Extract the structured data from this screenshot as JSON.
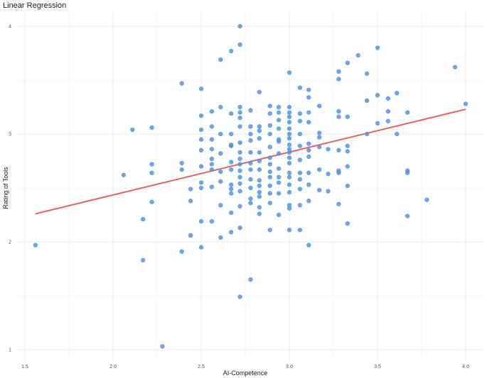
{
  "chart_data": {
    "type": "scatter",
    "title": "Linear Regression",
    "xlabel": "AI-Competence",
    "ylabel": "Rating of Tools",
    "xlim": [
      1.5,
      4.1
    ],
    "ylim": [
      0.9,
      4.1
    ],
    "x_ticks": [
      "1.5",
      "2.0",
      "2.5",
      "3.0",
      "3.5",
      "4.0"
    ],
    "y_ticks": [
      "1",
      "2",
      "3",
      "4"
    ],
    "grid": true,
    "point_color": "#4a90e2",
    "line_color": "#e8645f",
    "regression_line": {
      "x": [
        1.56,
        4.0
      ],
      "y": [
        2.26,
        3.23
      ]
    },
    "points": [
      {
        "x": 1.56,
        "y": 1.97
      },
      {
        "x": 2.06,
        "y": 2.62
      },
      {
        "x": 2.11,
        "y": 3.04
      },
      {
        "x": 2.17,
        "y": 1.83
      },
      {
        "x": 2.17,
        "y": 2.21
      },
      {
        "x": 2.22,
        "y": 2.37
      },
      {
        "x": 2.22,
        "y": 2.64
      },
      {
        "x": 2.22,
        "y": 2.72
      },
      {
        "x": 2.22,
        "y": 3.06
      },
      {
        "x": 2.28,
        "y": 1.03
      },
      {
        "x": 2.39,
        "y": 1.91
      },
      {
        "x": 2.39,
        "y": 2.67
      },
      {
        "x": 2.39,
        "y": 2.73
      },
      {
        "x": 2.39,
        "y": 3.47
      },
      {
        "x": 2.44,
        "y": 2.06
      },
      {
        "x": 2.44,
        "y": 2.38
      },
      {
        "x": 2.44,
        "y": 2.49
      },
      {
        "x": 2.5,
        "y": 1.95
      },
      {
        "x": 2.5,
        "y": 2.19
      },
      {
        "x": 2.5,
        "y": 2.5
      },
      {
        "x": 2.5,
        "y": 2.55
      },
      {
        "x": 2.5,
        "y": 2.7
      },
      {
        "x": 2.5,
        "y": 2.85
      },
      {
        "x": 2.5,
        "y": 2.95
      },
      {
        "x": 2.5,
        "y": 3.04
      },
      {
        "x": 2.5,
        "y": 3.17
      },
      {
        "x": 2.5,
        "y": 3.42
      },
      {
        "x": 2.56,
        "y": 2.19
      },
      {
        "x": 2.56,
        "y": 2.51
      },
      {
        "x": 2.56,
        "y": 2.67
      },
      {
        "x": 2.56,
        "y": 2.72
      },
      {
        "x": 2.56,
        "y": 2.77
      },
      {
        "x": 2.56,
        "y": 2.86
      },
      {
        "x": 2.56,
        "y": 2.95
      },
      {
        "x": 2.56,
        "y": 3.07
      },
      {
        "x": 2.56,
        "y": 3.21
      },
      {
        "x": 2.61,
        "y": 2.04
      },
      {
        "x": 2.61,
        "y": 2.34
      },
      {
        "x": 2.61,
        "y": 2.56
      },
      {
        "x": 2.61,
        "y": 2.65
      },
      {
        "x": 2.61,
        "y": 2.82
      },
      {
        "x": 2.61,
        "y": 3.0
      },
      {
        "x": 2.61,
        "y": 3.25
      },
      {
        "x": 2.61,
        "y": 3.69
      },
      {
        "x": 2.67,
        "y": 2.09
      },
      {
        "x": 2.67,
        "y": 2.27
      },
      {
        "x": 2.67,
        "y": 2.45
      },
      {
        "x": 2.67,
        "y": 2.49
      },
      {
        "x": 2.67,
        "y": 2.53
      },
      {
        "x": 2.67,
        "y": 2.67
      },
      {
        "x": 2.67,
        "y": 2.74
      },
      {
        "x": 2.67,
        "y": 2.89
      },
      {
        "x": 2.67,
        "y": 2.9
      },
      {
        "x": 2.67,
        "y": 3.0
      },
      {
        "x": 2.67,
        "y": 3.19
      },
      {
        "x": 2.67,
        "y": 3.77
      },
      {
        "x": 2.72,
        "y": 1.49
      },
      {
        "x": 2.72,
        "y": 2.13
      },
      {
        "x": 2.72,
        "y": 2.33
      },
      {
        "x": 2.72,
        "y": 2.47
      },
      {
        "x": 2.72,
        "y": 2.54
      },
      {
        "x": 2.72,
        "y": 2.6
      },
      {
        "x": 2.72,
        "y": 2.66
      },
      {
        "x": 2.72,
        "y": 2.72
      },
      {
        "x": 2.72,
        "y": 2.77
      },
      {
        "x": 2.72,
        "y": 2.83
      },
      {
        "x": 2.72,
        "y": 2.92
      },
      {
        "x": 2.72,
        "y": 3.07
      },
      {
        "x": 2.72,
        "y": 3.15
      },
      {
        "x": 2.72,
        "y": 3.2
      },
      {
        "x": 2.72,
        "y": 3.25
      },
      {
        "x": 2.72,
        "y": 3.83
      },
      {
        "x": 2.72,
        "y": 4.0
      },
      {
        "x": 2.78,
        "y": 1.65
      },
      {
        "x": 2.78,
        "y": 2.36
      },
      {
        "x": 2.78,
        "y": 2.4
      },
      {
        "x": 2.78,
        "y": 2.5
      },
      {
        "x": 2.78,
        "y": 2.58
      },
      {
        "x": 2.78,
        "y": 2.67
      },
      {
        "x": 2.78,
        "y": 2.73
      },
      {
        "x": 2.78,
        "y": 2.83
      },
      {
        "x": 2.78,
        "y": 2.94
      },
      {
        "x": 2.78,
        "y": 3.0
      },
      {
        "x": 2.78,
        "y": 3.07
      },
      {
        "x": 2.78,
        "y": 3.22
      },
      {
        "x": 2.83,
        "y": 2.26
      },
      {
        "x": 2.83,
        "y": 2.32
      },
      {
        "x": 2.83,
        "y": 2.42
      },
      {
        "x": 2.83,
        "y": 2.46
      },
      {
        "x": 2.83,
        "y": 2.52
      },
      {
        "x": 2.83,
        "y": 2.57
      },
      {
        "x": 2.83,
        "y": 2.67
      },
      {
        "x": 2.83,
        "y": 2.75
      },
      {
        "x": 2.83,
        "y": 2.83
      },
      {
        "x": 2.83,
        "y": 2.96
      },
      {
        "x": 2.83,
        "y": 3.03
      },
      {
        "x": 2.83,
        "y": 3.07
      },
      {
        "x": 2.83,
        "y": 3.39
      },
      {
        "x": 2.89,
        "y": 2.11
      },
      {
        "x": 2.89,
        "y": 2.36
      },
      {
        "x": 2.89,
        "y": 2.45
      },
      {
        "x": 2.89,
        "y": 2.52
      },
      {
        "x": 2.89,
        "y": 2.6
      },
      {
        "x": 2.89,
        "y": 2.65
      },
      {
        "x": 2.89,
        "y": 2.72
      },
      {
        "x": 2.89,
        "y": 2.78
      },
      {
        "x": 2.89,
        "y": 2.88
      },
      {
        "x": 2.89,
        "y": 3.0
      },
      {
        "x": 2.89,
        "y": 3.08
      },
      {
        "x": 2.89,
        "y": 3.19
      },
      {
        "x": 2.89,
        "y": 3.26
      },
      {
        "x": 2.94,
        "y": 2.25
      },
      {
        "x": 2.94,
        "y": 2.45
      },
      {
        "x": 2.94,
        "y": 2.55
      },
      {
        "x": 2.94,
        "y": 2.6
      },
      {
        "x": 2.94,
        "y": 2.68
      },
      {
        "x": 2.94,
        "y": 2.82
      },
      {
        "x": 2.94,
        "y": 2.93
      },
      {
        "x": 2.94,
        "y": 2.95
      },
      {
        "x": 2.94,
        "y": 3.05
      },
      {
        "x": 2.94,
        "y": 3.13
      },
      {
        "x": 2.94,
        "y": 3.2
      },
      {
        "x": 2.94,
        "y": 3.25
      },
      {
        "x": 3.0,
        "y": 2.11
      },
      {
        "x": 3.0,
        "y": 2.31
      },
      {
        "x": 3.0,
        "y": 2.34
      },
      {
        "x": 3.0,
        "y": 2.46
      },
      {
        "x": 3.0,
        "y": 2.53
      },
      {
        "x": 3.0,
        "y": 2.6
      },
      {
        "x": 3.0,
        "y": 2.64
      },
      {
        "x": 3.0,
        "y": 2.73
      },
      {
        "x": 3.0,
        "y": 2.78
      },
      {
        "x": 3.0,
        "y": 2.83
      },
      {
        "x": 3.0,
        "y": 2.86
      },
      {
        "x": 3.0,
        "y": 2.9
      },
      {
        "x": 3.0,
        "y": 2.96
      },
      {
        "x": 3.0,
        "y": 3.0
      },
      {
        "x": 3.0,
        "y": 3.05
      },
      {
        "x": 3.0,
        "y": 3.11
      },
      {
        "x": 3.0,
        "y": 3.16
      },
      {
        "x": 3.0,
        "y": 3.2
      },
      {
        "x": 3.0,
        "y": 3.25
      },
      {
        "x": 3.0,
        "y": 3.57
      },
      {
        "x": 3.06,
        "y": 2.11
      },
      {
        "x": 3.06,
        "y": 2.34
      },
      {
        "x": 3.06,
        "y": 2.49
      },
      {
        "x": 3.06,
        "y": 2.58
      },
      {
        "x": 3.06,
        "y": 2.64
      },
      {
        "x": 3.06,
        "y": 2.76
      },
      {
        "x": 3.06,
        "y": 2.89
      },
      {
        "x": 3.06,
        "y": 3.0
      },
      {
        "x": 3.06,
        "y": 3.12
      },
      {
        "x": 3.06,
        "y": 3.19
      },
      {
        "x": 3.06,
        "y": 3.43
      },
      {
        "x": 3.11,
        "y": 1.97
      },
      {
        "x": 3.11,
        "y": 2.38
      },
      {
        "x": 3.11,
        "y": 2.53
      },
      {
        "x": 3.11,
        "y": 2.64
      },
      {
        "x": 3.11,
        "y": 2.79
      },
      {
        "x": 3.11,
        "y": 2.85
      },
      {
        "x": 3.11,
        "y": 2.91
      },
      {
        "x": 3.11,
        "y": 3.11
      },
      {
        "x": 3.11,
        "y": 3.2
      },
      {
        "x": 3.11,
        "y": 3.34
      },
      {
        "x": 3.11,
        "y": 3.41
      },
      {
        "x": 3.17,
        "y": 2.48
      },
      {
        "x": 3.17,
        "y": 2.67
      },
      {
        "x": 3.17,
        "y": 2.88
      },
      {
        "x": 3.17,
        "y": 2.97
      },
      {
        "x": 3.17,
        "y": 3.01
      },
      {
        "x": 3.17,
        "y": 3.26
      },
      {
        "x": 3.22,
        "y": 2.47
      },
      {
        "x": 3.22,
        "y": 2.63
      },
      {
        "x": 3.22,
        "y": 2.86
      },
      {
        "x": 3.28,
        "y": 2.35
      },
      {
        "x": 3.28,
        "y": 2.64
      },
      {
        "x": 3.28,
        "y": 2.66
      },
      {
        "x": 3.28,
        "y": 2.85
      },
      {
        "x": 3.28,
        "y": 3.16
      },
      {
        "x": 3.28,
        "y": 3.21
      },
      {
        "x": 3.28,
        "y": 3.51
      },
      {
        "x": 3.28,
        "y": 3.58
      },
      {
        "x": 3.33,
        "y": 2.17
      },
      {
        "x": 3.33,
        "y": 2.52
      },
      {
        "x": 3.33,
        "y": 2.7
      },
      {
        "x": 3.33,
        "y": 2.84
      },
      {
        "x": 3.33,
        "y": 2.89
      },
      {
        "x": 3.33,
        "y": 3.16
      },
      {
        "x": 3.33,
        "y": 3.66
      },
      {
        "x": 3.39,
        "y": 3.73
      },
      {
        "x": 3.44,
        "y": 3.0
      },
      {
        "x": 3.44,
        "y": 3.31
      },
      {
        "x": 3.44,
        "y": 3.56
      },
      {
        "x": 3.5,
        "y": 3.1
      },
      {
        "x": 3.5,
        "y": 3.36
      },
      {
        "x": 3.5,
        "y": 3.8
      },
      {
        "x": 3.56,
        "y": 3.12
      },
      {
        "x": 3.56,
        "y": 3.21
      },
      {
        "x": 3.56,
        "y": 3.33
      },
      {
        "x": 3.61,
        "y": 3.0
      },
      {
        "x": 3.61,
        "y": 3.38
      },
      {
        "x": 3.67,
        "y": 2.24
      },
      {
        "x": 3.67,
        "y": 2.64
      },
      {
        "x": 3.67,
        "y": 2.66
      },
      {
        "x": 3.67,
        "y": 3.2
      },
      {
        "x": 3.78,
        "y": 2.39
      },
      {
        "x": 3.94,
        "y": 3.62
      },
      {
        "x": 4.0,
        "y": 3.28
      }
    ]
  }
}
